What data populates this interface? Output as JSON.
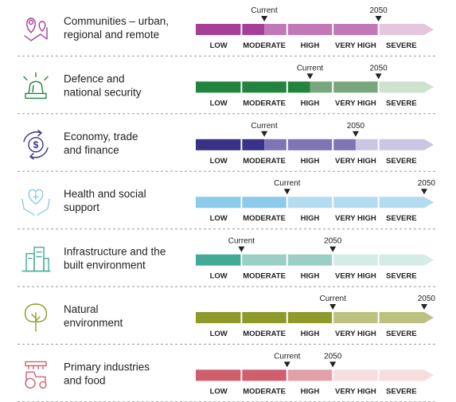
{
  "chart_data": {
    "type": "risk-scale",
    "levels": [
      "LOW",
      "MODERATE",
      "HIGH",
      "VERY HIGH",
      "SEVERE"
    ],
    "marker_labels": {
      "current": "Current",
      "future": "2050"
    },
    "sectors": [
      {
        "label_lines": [
          "Communities – urban,",
          "regional and remote"
        ],
        "icon": "map-pins-icon",
        "colors": [
          "#a63f97",
          "#c277b6",
          "#e6c6df"
        ],
        "current": 1.5,
        "future": 4.0
      },
      {
        "label_lines": [
          "Defence and",
          "national security"
        ],
        "icon": "siren-icon",
        "colors": [
          "#23843f",
          "#7aa67d",
          "#cfe2cf"
        ],
        "current": 2.5,
        "future": 4.0
      },
      {
        "label_lines": [
          "Economy, trade",
          "and finance"
        ],
        "icon": "dollar-cycle-icon",
        "colors": [
          "#3a3287",
          "#7f74b6",
          "#cbc6e4"
        ],
        "current": 1.5,
        "future": 3.5
      },
      {
        "label_lines": [
          "Health and social",
          "support"
        ],
        "icon": "hands-heart-icon",
        "colors": [
          "#8ccbe9",
          "#b4dcf1",
          "#b4dcf1"
        ],
        "current": 2.0,
        "future": 5.0
      },
      {
        "label_lines": [
          "Infrastructure and the",
          "built environment"
        ],
        "icon": "buildings-icon",
        "colors": [
          "#44aa98",
          "#9bcfc3",
          "#d4ebe6"
        ],
        "current": 1.0,
        "future": 3.0
      },
      {
        "label_lines": [
          "Natural",
          "environment"
        ],
        "icon": "tree-icon",
        "colors": [
          "#8e9a2a",
          "#bcc180",
          "#bcc180"
        ],
        "current": 3.0,
        "future": 5.0
      },
      {
        "label_lines": [
          "Primary industries",
          "and food"
        ],
        "icon": "tractor-icon",
        "colors": [
          "#cf5f6e",
          "#e2a0a8",
          "#f5dde0"
        ],
        "current": 2.0,
        "future": 3.0
      }
    ]
  }
}
